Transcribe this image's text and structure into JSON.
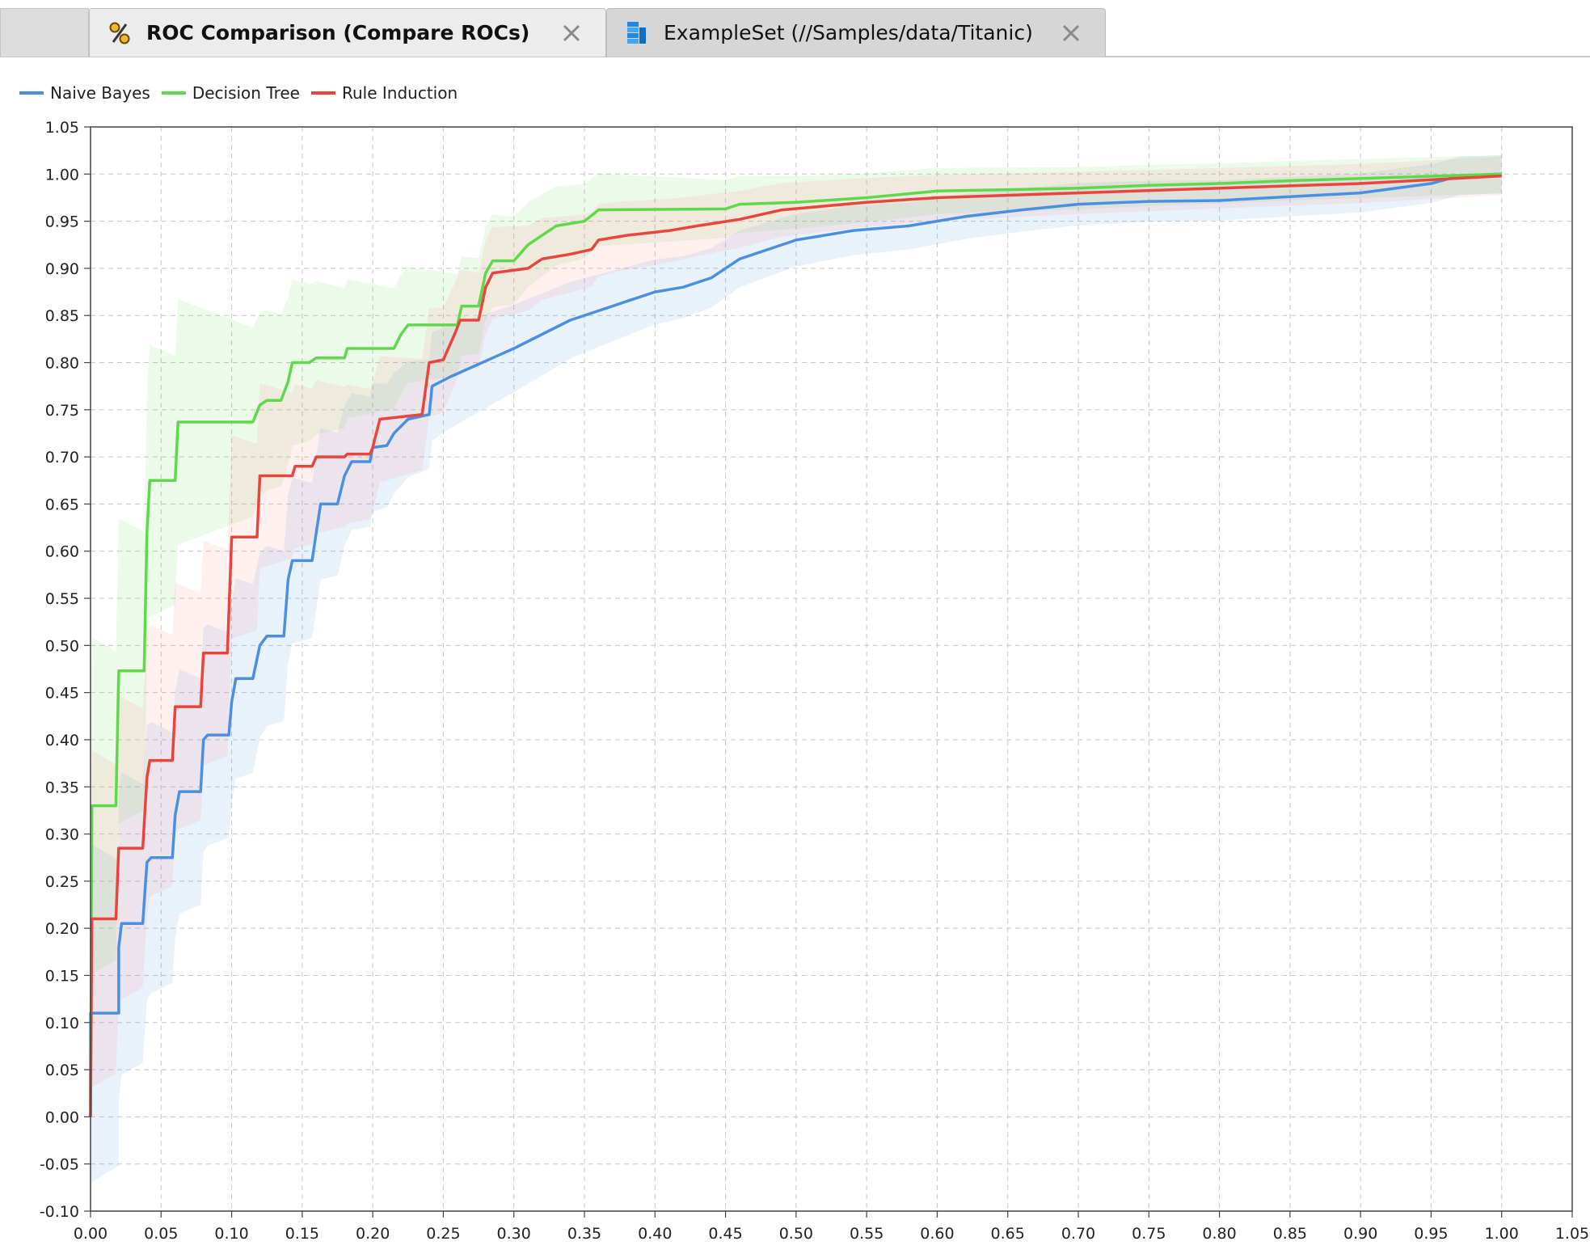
{
  "tabs": [
    {
      "label": "ROC Comparison (Compare ROCs)",
      "icon": "percent-icon",
      "active": true
    },
    {
      "label": "ExampleSet (//Samples/data/Titanic)",
      "icon": "data-table-icon",
      "active": false
    }
  ],
  "chart_data": {
    "type": "line",
    "title": "",
    "xlabel": "",
    "ylabel": "",
    "xlim": [
      0.0,
      1.05
    ],
    "ylim": [
      -0.1,
      1.05
    ],
    "grid": true,
    "legend_placement": "top-left",
    "x_ticks": [
      "0.00",
      "0.05",
      "0.10",
      "0.15",
      "0.20",
      "0.25",
      "0.30",
      "0.35",
      "0.40",
      "0.45",
      "0.50",
      "0.55",
      "0.60",
      "0.65",
      "0.70",
      "0.75",
      "0.80",
      "0.85",
      "0.90",
      "0.95",
      "1.00",
      "1.05"
    ],
    "y_ticks": [
      "1.05",
      "1.00",
      "0.95",
      "0.90",
      "0.85",
      "0.80",
      "0.75",
      "0.70",
      "0.65",
      "0.60",
      "0.55",
      "0.50",
      "0.45",
      "0.40",
      "0.35",
      "0.30",
      "0.25",
      "0.20",
      "0.15",
      "0.10",
      "0.05",
      "0.00",
      "-0.05",
      "-0.10"
    ],
    "series": [
      {
        "name": "Naive Bayes",
        "color": "#4a90e2",
        "band_color": "#4a90e2",
        "points": [
          [
            0,
            0
          ],
          [
            0,
            0.11
          ],
          [
            0.02,
            0.11
          ],
          [
            0.02,
            0.18
          ],
          [
            0.022,
            0.205
          ],
          [
            0.037,
            0.205
          ],
          [
            0.04,
            0.27
          ],
          [
            0.043,
            0.275
          ],
          [
            0.058,
            0.275
          ],
          [
            0.06,
            0.32
          ],
          [
            0.063,
            0.345
          ],
          [
            0.078,
            0.345
          ],
          [
            0.08,
            0.4
          ],
          [
            0.083,
            0.405
          ],
          [
            0.098,
            0.405
          ],
          [
            0.1,
            0.44
          ],
          [
            0.103,
            0.465
          ],
          [
            0.115,
            0.465
          ],
          [
            0.12,
            0.5
          ],
          [
            0.125,
            0.51
          ],
          [
            0.137,
            0.51
          ],
          [
            0.14,
            0.57
          ],
          [
            0.143,
            0.59
          ],
          [
            0.157,
            0.59
          ],
          [
            0.16,
            0.62
          ],
          [
            0.163,
            0.65
          ],
          [
            0.175,
            0.65
          ],
          [
            0.18,
            0.68
          ],
          [
            0.185,
            0.695
          ],
          [
            0.198,
            0.695
          ],
          [
            0.2,
            0.71
          ],
          [
            0.21,
            0.712
          ],
          [
            0.215,
            0.725
          ],
          [
            0.225,
            0.74
          ],
          [
            0.24,
            0.745
          ],
          [
            0.242,
            0.775
          ],
          [
            0.255,
            0.785
          ],
          [
            0.27,
            0.795
          ],
          [
            0.285,
            0.805
          ],
          [
            0.3,
            0.815
          ],
          [
            0.32,
            0.83
          ],
          [
            0.34,
            0.845
          ],
          [
            0.36,
            0.855
          ],
          [
            0.38,
            0.865
          ],
          [
            0.4,
            0.875
          ],
          [
            0.42,
            0.88
          ],
          [
            0.44,
            0.89
          ],
          [
            0.46,
            0.91
          ],
          [
            0.48,
            0.92
          ],
          [
            0.5,
            0.93
          ],
          [
            0.54,
            0.94
          ],
          [
            0.58,
            0.945
          ],
          [
            0.62,
            0.955
          ],
          [
            0.66,
            0.962
          ],
          [
            0.7,
            0.968
          ],
          [
            0.75,
            0.971
          ],
          [
            0.8,
            0.972
          ],
          [
            0.85,
            0.976
          ],
          [
            0.9,
            0.98
          ],
          [
            0.95,
            0.99
          ],
          [
            0.97,
            0.998
          ],
          [
            1.0,
            1.0
          ]
        ]
      },
      {
        "name": "Decision Tree",
        "color": "#5fd94c",
        "band_color": "#5fd94c",
        "points": [
          [
            0,
            0
          ],
          [
            0.001,
            0.33
          ],
          [
            0.018,
            0.33
          ],
          [
            0.02,
            0.473
          ],
          [
            0.038,
            0.473
          ],
          [
            0.04,
            0.62
          ],
          [
            0.042,
            0.675
          ],
          [
            0.06,
            0.675
          ],
          [
            0.062,
            0.737
          ],
          [
            0.115,
            0.737
          ],
          [
            0.12,
            0.755
          ],
          [
            0.125,
            0.76
          ],
          [
            0.135,
            0.76
          ],
          [
            0.14,
            0.78
          ],
          [
            0.143,
            0.8
          ],
          [
            0.155,
            0.8
          ],
          [
            0.16,
            0.805
          ],
          [
            0.18,
            0.805
          ],
          [
            0.182,
            0.815
          ],
          [
            0.215,
            0.815
          ],
          [
            0.22,
            0.83
          ],
          [
            0.225,
            0.84
          ],
          [
            0.26,
            0.84
          ],
          [
            0.263,
            0.86
          ],
          [
            0.275,
            0.86
          ],
          [
            0.28,
            0.895
          ],
          [
            0.285,
            0.908
          ],
          [
            0.3,
            0.908
          ],
          [
            0.31,
            0.925
          ],
          [
            0.32,
            0.935
          ],
          [
            0.33,
            0.945
          ],
          [
            0.35,
            0.95
          ],
          [
            0.36,
            0.962
          ],
          [
            0.45,
            0.963
          ],
          [
            0.46,
            0.968
          ],
          [
            0.5,
            0.97
          ],
          [
            0.55,
            0.975
          ],
          [
            0.6,
            0.982
          ],
          [
            0.7,
            0.985
          ],
          [
            0.75,
            0.988
          ],
          [
            0.8,
            0.99
          ],
          [
            0.85,
            0.993
          ],
          [
            1.0,
            1.0
          ]
        ]
      },
      {
        "name": "Rule Induction",
        "color": "#e8453c",
        "band_color": "#ff8080",
        "points": [
          [
            0,
            0
          ],
          [
            0.001,
            0.21
          ],
          [
            0.018,
            0.21
          ],
          [
            0.02,
            0.285
          ],
          [
            0.037,
            0.285
          ],
          [
            0.04,
            0.36
          ],
          [
            0.042,
            0.378
          ],
          [
            0.058,
            0.378
          ],
          [
            0.06,
            0.435
          ],
          [
            0.078,
            0.435
          ],
          [
            0.08,
            0.492
          ],
          [
            0.097,
            0.492
          ],
          [
            0.1,
            0.615
          ],
          [
            0.118,
            0.615
          ],
          [
            0.12,
            0.68
          ],
          [
            0.143,
            0.68
          ],
          [
            0.145,
            0.69
          ],
          [
            0.157,
            0.69
          ],
          [
            0.16,
            0.7
          ],
          [
            0.18,
            0.7
          ],
          [
            0.182,
            0.703
          ],
          [
            0.198,
            0.703
          ],
          [
            0.2,
            0.71
          ],
          [
            0.205,
            0.74
          ],
          [
            0.235,
            0.745
          ],
          [
            0.24,
            0.8
          ],
          [
            0.25,
            0.803
          ],
          [
            0.258,
            0.83
          ],
          [
            0.262,
            0.845
          ],
          [
            0.275,
            0.845
          ],
          [
            0.28,
            0.88
          ],
          [
            0.285,
            0.895
          ],
          [
            0.31,
            0.9
          ],
          [
            0.32,
            0.91
          ],
          [
            0.34,
            0.915
          ],
          [
            0.355,
            0.92
          ],
          [
            0.36,
            0.93
          ],
          [
            0.38,
            0.935
          ],
          [
            0.41,
            0.94
          ],
          [
            0.43,
            0.945
          ],
          [
            0.46,
            0.952
          ],
          [
            0.49,
            0.962
          ],
          [
            0.55,
            0.97
          ],
          [
            0.6,
            0.975
          ],
          [
            0.7,
            0.98
          ],
          [
            0.8,
            0.985
          ],
          [
            0.9,
            0.99
          ],
          [
            1.0,
            0.998
          ]
        ]
      }
    ]
  }
}
